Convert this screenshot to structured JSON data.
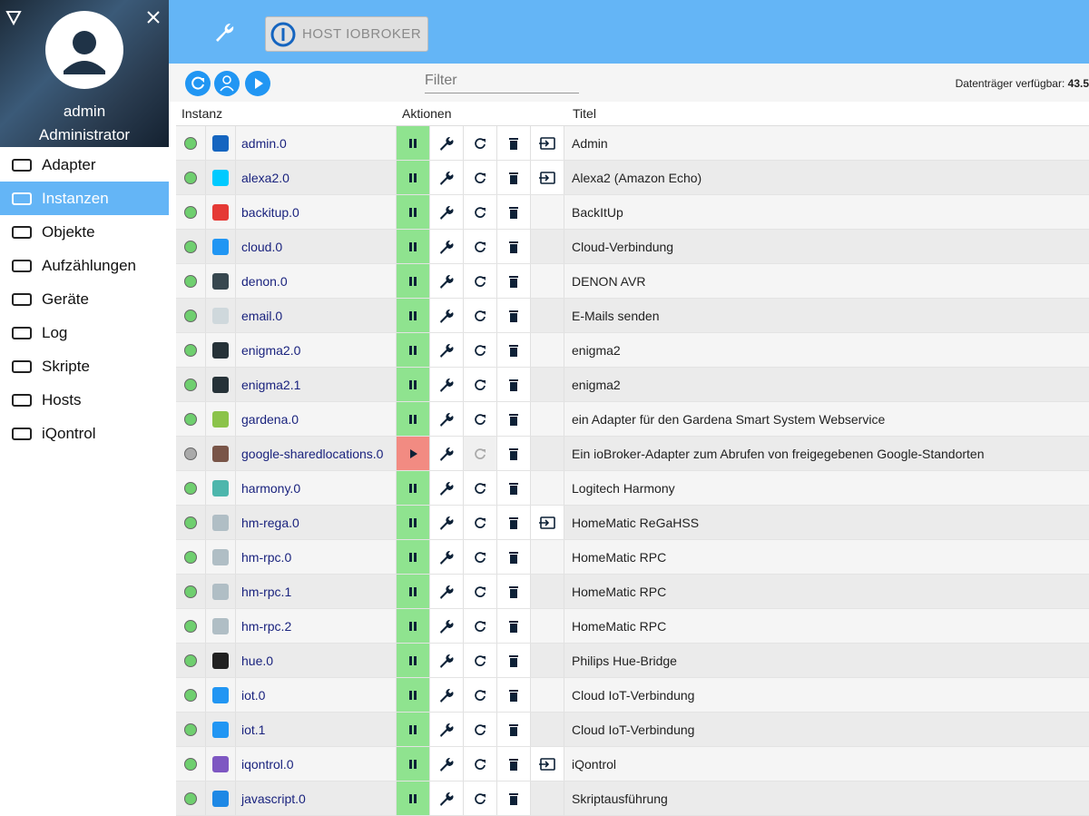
{
  "sidebar": {
    "user": "admin",
    "role": "Administrator",
    "menu": [
      "Adapter",
      "Instanzen",
      "Objekte",
      "Aufzählungen",
      "Geräte",
      "Log",
      "Skripte",
      "Hosts",
      "iQontrol"
    ],
    "active": 1
  },
  "header": {
    "host_button": "HOST IOBROKER"
  },
  "toolbar": {
    "filter_placeholder": "Filter",
    "disk_label": "Datenträger verfügbar:",
    "disk_value": 43.5
  },
  "table": {
    "columns": [
      "Instanz",
      "Aktionen",
      "Titel"
    ],
    "rows": [
      {
        "instance": "admin.0",
        "title": "Admin",
        "running": true,
        "link": true,
        "color": "#1565c0"
      },
      {
        "instance": "alexa2.0",
        "title": "Alexa2 (Amazon Echo)",
        "running": true,
        "link": true,
        "color": "#00caff"
      },
      {
        "instance": "backitup.0",
        "title": "BackItUp",
        "running": true,
        "link": false,
        "color": "#e53935"
      },
      {
        "instance": "cloud.0",
        "title": "Cloud-Verbindung",
        "running": true,
        "link": false,
        "color": "#2196f3"
      },
      {
        "instance": "denon.0",
        "title": "DENON AVR",
        "running": true,
        "link": false,
        "color": "#37474f"
      },
      {
        "instance": "email.0",
        "title": "E-Mails senden",
        "running": true,
        "link": false,
        "color": "#cfd8dc"
      },
      {
        "instance": "enigma2.0",
        "title": "enigma2",
        "running": true,
        "link": false,
        "color": "#263238"
      },
      {
        "instance": "enigma2.1",
        "title": "enigma2",
        "running": true,
        "link": false,
        "color": "#263238"
      },
      {
        "instance": "gardena.0",
        "title": "ein Adapter für den Gardena Smart System Webservice",
        "running": true,
        "link": false,
        "color": "#8bc34a"
      },
      {
        "instance": "google-sharedlocations.0",
        "title": "Ein ioBroker-Adapter zum Abrufen von freigegebenen Google-Standorten",
        "running": false,
        "link": false,
        "color": "#795548"
      },
      {
        "instance": "harmony.0",
        "title": "Logitech Harmony",
        "running": true,
        "link": false,
        "color": "#4db6ac"
      },
      {
        "instance": "hm-rega.0",
        "title": "HomeMatic ReGaHSS",
        "running": true,
        "link": true,
        "color": "#b0bec5"
      },
      {
        "instance": "hm-rpc.0",
        "title": "HomeMatic RPC",
        "running": true,
        "link": false,
        "color": "#b0bec5"
      },
      {
        "instance": "hm-rpc.1",
        "title": "HomeMatic RPC",
        "running": true,
        "link": false,
        "color": "#b0bec5"
      },
      {
        "instance": "hm-rpc.2",
        "title": "HomeMatic RPC",
        "running": true,
        "link": false,
        "color": "#b0bec5"
      },
      {
        "instance": "hue.0",
        "title": "Philips Hue-Bridge",
        "running": true,
        "link": false,
        "color": "#212121"
      },
      {
        "instance": "iot.0",
        "title": "Cloud IoT-Verbindung",
        "running": true,
        "link": false,
        "color": "#2196f3"
      },
      {
        "instance": "iot.1",
        "title": "Cloud IoT-Verbindung",
        "running": true,
        "link": false,
        "color": "#2196f3"
      },
      {
        "instance": "iqontrol.0",
        "title": "iQontrol",
        "running": true,
        "link": true,
        "color": "#7e57c2"
      },
      {
        "instance": "javascript.0",
        "title": "Skriptausführung",
        "running": true,
        "link": false,
        "color": "#1e88e5"
      }
    ]
  }
}
